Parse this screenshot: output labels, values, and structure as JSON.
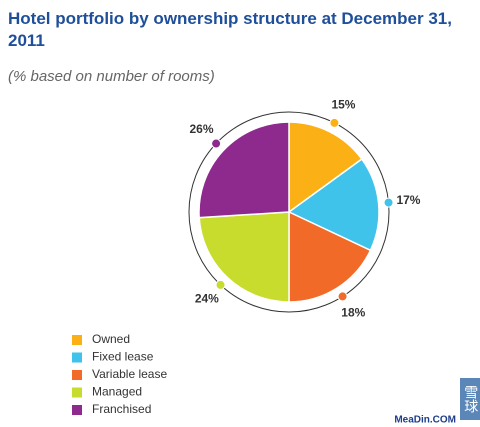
{
  "chart_data": {
    "type": "pie",
    "title": "Hotel portfolio by ownership structure at December 31, 2011",
    "subtitle": "(% based on number of rooms)",
    "categories": [
      "Owned",
      "Fixed lease",
      "Variable lease",
      "Managed",
      "Franchised"
    ],
    "values": [
      15,
      17,
      18,
      24,
      26
    ],
    "value_labels": [
      "15%",
      "17%",
      "18%",
      "24%",
      "26%"
    ],
    "colors": [
      "#fbb116",
      "#3fc3ea",
      "#f26a28",
      "#c8dc2e",
      "#8e2a8e"
    ],
    "watermark": "MeaDin.COM",
    "watermark_logo": "雪球"
  }
}
